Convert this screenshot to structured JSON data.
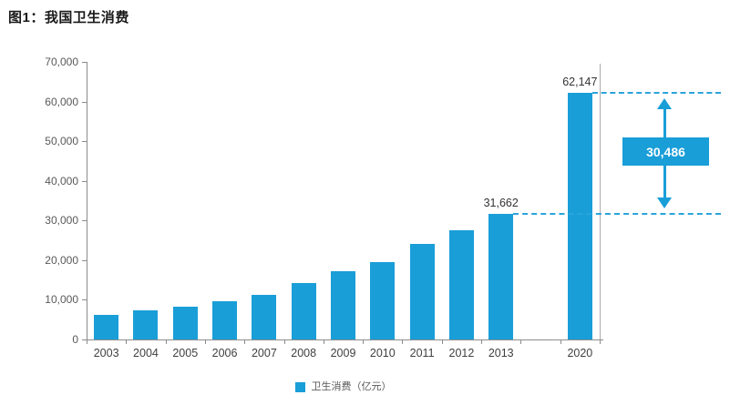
{
  "page": {
    "title": "图1：我国卫生消费"
  },
  "colors": {
    "bar": "#199ED8",
    "dashed": "#2BA4DB",
    "annotation_bg": "#199ED8",
    "annotation_text": "#FFFFFF",
    "axis": "#8C8C8C",
    "right_border": "#ABABAB",
    "tick_label": "#595959",
    "data_label": "#333333"
  },
  "chart_data": {
    "type": "bar",
    "title": "图1：我国卫生消费",
    "categories": [
      "2003",
      "2004",
      "2005",
      "2006",
      "2007",
      "2008",
      "2009",
      "2010",
      "2011",
      "2012",
      "2013",
      "",
      "2020"
    ],
    "values": [
      6100,
      7300,
      8300,
      9600,
      11300,
      14200,
      17300,
      19500,
      24000,
      27500,
      31662,
      null,
      62147
    ],
    "data_labels": {
      "2013": "31,662",
      "2020": "62,147"
    },
    "annotation": {
      "label": "30,486",
      "from_value": 31662,
      "to_value": 62147
    },
    "legend": [
      {
        "label": "卫生消费（亿元）",
        "color": "#199ED8"
      }
    ],
    "xlabel": "",
    "ylabel": "",
    "ylim": [
      0,
      70000
    ],
    "yticks": [
      0,
      10000,
      20000,
      30000,
      40000,
      50000,
      60000,
      70000
    ],
    "ytick_labels": [
      "0",
      "10,000",
      "20,000",
      "30,000",
      "40,000",
      "50,000",
      "60,000",
      "70,000"
    ],
    "grid": false,
    "legend_position": "bottom"
  }
}
